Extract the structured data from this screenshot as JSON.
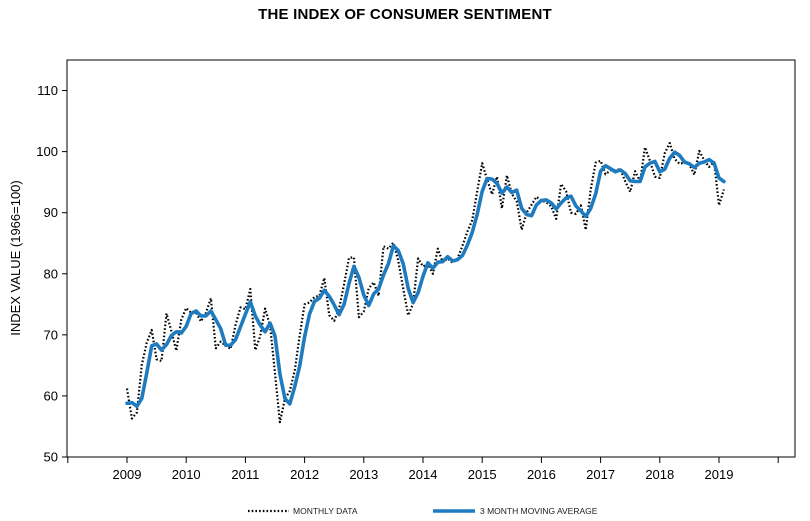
{
  "chart_data": {
    "type": "line",
    "title": "THE INDEX OF CONSUMER SENTIMENT",
    "ylabel": "INDEX VALUE (1966=100)",
    "xlabel": "",
    "ylim": [
      50,
      115
    ],
    "yticks": [
      50,
      60,
      70,
      80,
      90,
      100,
      110
    ],
    "xlim": [
      2008.0,
      2020.0
    ],
    "xticks": [
      2009,
      2010,
      2011,
      2012,
      2013,
      2014,
      2015,
      2016,
      2017,
      2018,
      2019
    ],
    "grid": false,
    "legend_position": "bottom",
    "series": [
      {
        "name": "MONTHLY DATA",
        "style": "dotted",
        "color": "#000000",
        "x": [
          2009.0,
          2009.083,
          2009.167,
          2009.25,
          2009.333,
          2009.417,
          2009.5,
          2009.583,
          2009.667,
          2009.75,
          2009.833,
          2009.917,
          2010.0,
          2010.083,
          2010.167,
          2010.25,
          2010.333,
          2010.417,
          2010.5,
          2010.583,
          2010.667,
          2010.75,
          2010.833,
          2010.917,
          2011.0,
          2011.083,
          2011.167,
          2011.25,
          2011.333,
          2011.417,
          2011.5,
          2011.583,
          2011.667,
          2011.75,
          2011.833,
          2011.917,
          2012.0,
          2012.083,
          2012.167,
          2012.25,
          2012.333,
          2012.417,
          2012.5,
          2012.583,
          2012.667,
          2012.75,
          2012.833,
          2012.917,
          2013.0,
          2013.083,
          2013.167,
          2013.25,
          2013.333,
          2013.417,
          2013.5,
          2013.583,
          2013.667,
          2013.75,
          2013.833,
          2013.917,
          2014.0,
          2014.083,
          2014.167,
          2014.25,
          2014.333,
          2014.417,
          2014.5,
          2014.583,
          2014.667,
          2014.75,
          2014.833,
          2014.917,
          2015.0,
          2015.083,
          2015.167,
          2015.25,
          2015.333,
          2015.417,
          2015.5,
          2015.583,
          2015.667,
          2015.75,
          2015.833,
          2015.917,
          2016.0,
          2016.083,
          2016.167,
          2016.25,
          2016.333,
          2016.417,
          2016.5,
          2016.583,
          2016.667,
          2016.75,
          2016.833,
          2016.917,
          2017.0,
          2017.083,
          2017.167,
          2017.25,
          2017.333,
          2017.417,
          2017.5,
          2017.583,
          2017.667,
          2017.75,
          2017.833,
          2017.917,
          2018.0,
          2018.083,
          2018.167,
          2018.25,
          2018.333,
          2018.417,
          2018.5,
          2018.583,
          2018.667,
          2018.75,
          2018.833,
          2018.917,
          2019.0,
          2019.083
        ],
        "values": [
          61.2,
          56.3,
          57.3,
          65.1,
          68.7,
          70.8,
          66.0,
          65.7,
          73.5,
          70.6,
          67.4,
          72.5,
          74.4,
          73.6,
          73.6,
          72.2,
          73.6,
          76.0,
          67.8,
          68.9,
          68.2,
          67.7,
          71.6,
          74.5,
          74.2,
          77.5,
          67.5,
          69.8,
          74.3,
          71.5,
          63.7,
          55.7,
          59.5,
          60.8,
          64.1,
          69.9,
          75.0,
          75.3,
          76.2,
          76.4,
          79.3,
          73.2,
          72.3,
          74.3,
          78.3,
          82.6,
          82.7,
          72.9,
          73.8,
          77.6,
          78.6,
          76.4,
          84.5,
          84.1,
          85.1,
          82.1,
          77.5,
          73.2,
          75.1,
          82.5,
          81.2,
          81.6,
          80.0,
          84.1,
          81.9,
          82.5,
          81.8,
          82.5,
          84.6,
          86.9,
          88.8,
          93.6,
          98.1,
          95.4,
          93.0,
          95.9,
          90.7,
          96.1,
          93.1,
          91.9,
          87.2,
          90.0,
          91.3,
          92.6,
          92.0,
          91.7,
          91.0,
          89.0,
          94.7,
          93.5,
          90.0,
          89.8,
          91.2,
          87.2,
          93.8,
          98.2,
          98.5,
          96.3,
          96.9,
          97.0,
          97.1,
          95.1,
          93.4,
          96.8,
          95.1,
          100.7,
          98.5,
          95.9,
          95.7,
          99.7,
          101.4,
          98.8,
          98.0,
          98.2,
          97.9,
          96.2,
          100.1,
          98.6,
          97.5,
          98.3,
          91.2,
          93.8
        ]
      },
      {
        "name": "3 MONTH MOVING AVERAGE",
        "style": "solid",
        "color": "#1f7bc0",
        "x": [
          2009.0,
          2009.083,
          2009.167,
          2009.25,
          2009.333,
          2009.417,
          2009.5,
          2009.583,
          2009.667,
          2009.75,
          2009.833,
          2009.917,
          2010.0,
          2010.083,
          2010.167,
          2010.25,
          2010.333,
          2010.417,
          2010.5,
          2010.583,
          2010.667,
          2010.75,
          2010.833,
          2010.917,
          2011.0,
          2011.083,
          2011.167,
          2011.25,
          2011.333,
          2011.417,
          2011.5,
          2011.583,
          2011.667,
          2011.75,
          2011.833,
          2011.917,
          2012.0,
          2012.083,
          2012.167,
          2012.25,
          2012.333,
          2012.417,
          2012.5,
          2012.583,
          2012.667,
          2012.75,
          2012.833,
          2012.917,
          2013.0,
          2013.083,
          2013.167,
          2013.25,
          2013.333,
          2013.417,
          2013.5,
          2013.583,
          2013.667,
          2013.75,
          2013.833,
          2013.917,
          2014.0,
          2014.083,
          2014.167,
          2014.25,
          2014.333,
          2014.417,
          2014.5,
          2014.583,
          2014.667,
          2014.75,
          2014.833,
          2014.917,
          2015.0,
          2015.083,
          2015.167,
          2015.25,
          2015.333,
          2015.417,
          2015.5,
          2015.583,
          2015.667,
          2015.75,
          2015.833,
          2015.917,
          2016.0,
          2016.083,
          2016.167,
          2016.25,
          2016.333,
          2016.417,
          2016.5,
          2016.583,
          2016.667,
          2016.75,
          2016.833,
          2016.917,
          2017.0,
          2017.083,
          2017.167,
          2017.25,
          2017.333,
          2017.417,
          2017.5,
          2017.583,
          2017.667,
          2017.75,
          2017.833,
          2017.917,
          2018.0,
          2018.083,
          2018.167,
          2018.25,
          2018.333,
          2018.417,
          2018.5,
          2018.583,
          2018.667,
          2018.75,
          2018.833,
          2018.917,
          2019.0,
          2019.083
        ],
        "values": [
          58.8,
          58.9,
          58.3,
          59.6,
          63.7,
          68.2,
          68.5,
          67.5,
          68.4,
          69.9,
          70.5,
          70.3,
          71.4,
          73.5,
          73.9,
          73.1,
          73.1,
          73.9,
          72.5,
          71.0,
          68.3,
          68.3,
          69.2,
          71.3,
          73.4,
          75.4,
          73.1,
          71.6,
          70.5,
          71.9,
          69.8,
          63.6,
          59.6,
          58.7,
          61.5,
          64.9,
          69.7,
          73.4,
          75.5,
          76.0,
          77.3,
          76.3,
          74.9,
          73.3,
          75.0,
          78.4,
          81.2,
          79.4,
          76.5,
          74.8,
          76.7,
          77.5,
          79.8,
          81.7,
          84.6,
          83.8,
          81.6,
          77.6,
          75.3,
          76.9,
          79.6,
          81.8,
          80.9,
          81.9,
          82.0,
          82.8,
          82.1,
          82.3,
          83.0,
          84.7,
          86.8,
          89.8,
          93.5,
          95.6,
          95.5,
          94.8,
          93.2,
          94.2,
          93.3,
          93.7,
          90.7,
          89.7,
          89.5,
          91.3,
          92.0,
          92.1,
          91.6,
          90.6,
          91.6,
          92.4,
          92.7,
          91.1,
          90.3,
          89.4,
          90.7,
          93.1,
          96.8,
          97.7,
          97.2,
          96.7,
          97.0,
          96.4,
          95.2,
          95.1,
          95.1,
          97.5,
          98.1,
          98.4,
          96.7,
          97.1,
          98.9,
          99.9,
          99.4,
          98.3,
          98.0,
          97.4,
          98.1,
          98.3,
          98.7,
          98.1,
          95.7,
          95.1
        ]
      }
    ]
  }
}
